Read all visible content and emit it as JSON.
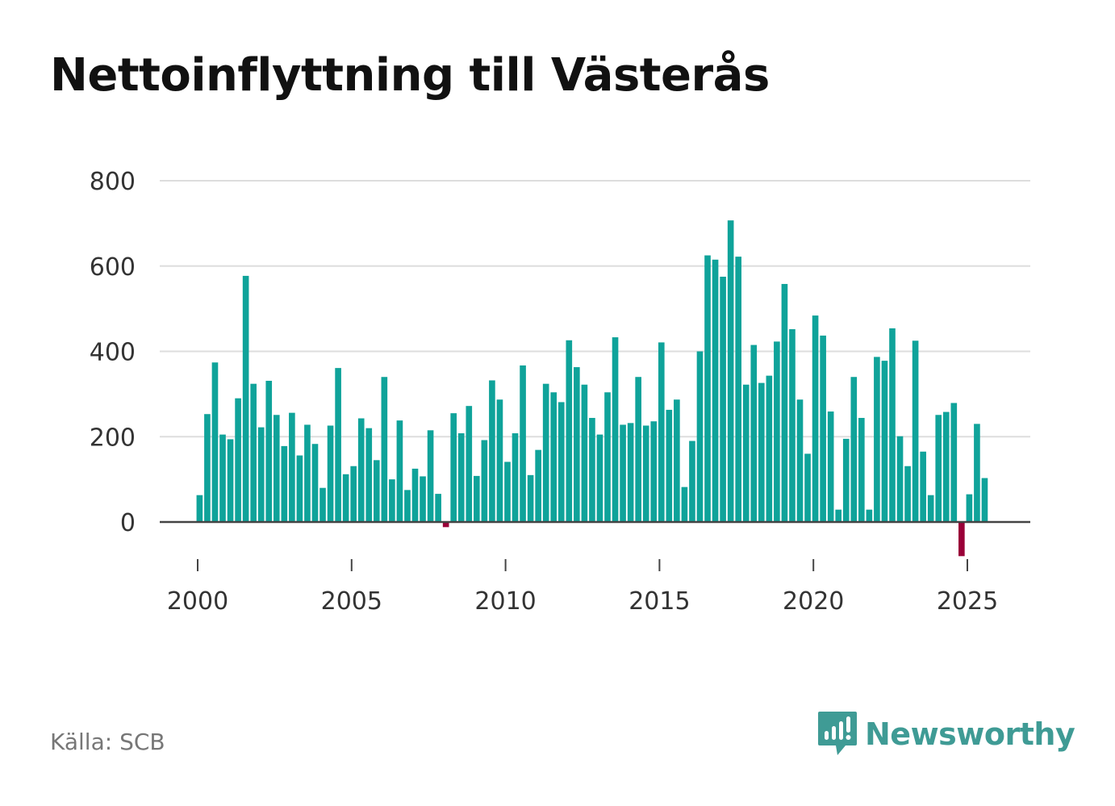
{
  "title": "Nettoinflyttning till Västerås",
  "source": "Källa: SCB",
  "brand": {
    "name": "Newsworthy",
    "color": "#3f9b95"
  },
  "colors": {
    "positive": "#0fa39a",
    "negative": "#9a0038",
    "grid": "#dddddd",
    "axis": "#444444"
  },
  "chart_data": {
    "type": "bar",
    "title": "Nettoinflyttning till Västerås",
    "xlabel": "",
    "ylabel": "",
    "ylim": [
      -80,
      800
    ],
    "yticks": [
      0,
      200,
      400,
      600,
      800
    ],
    "xticks": [
      2000,
      2005,
      2010,
      2015,
      2020,
      2025
    ],
    "xlim": [
      1998.7,
      2027.0
    ],
    "grid": true,
    "frequency": "quarterly",
    "start_year": 2000,
    "values": [
      63,
      253,
      374,
      205,
      194,
      290,
      577,
      324,
      222,
      331,
      251,
      178,
      256,
      156,
      228,
      183,
      80,
      226,
      361,
      112,
      131,
      243,
      220,
      145,
      340,
      100,
      238,
      75,
      125,
      107,
      215,
      66,
      -12,
      255,
      208,
      272,
      108,
      192,
      332,
      287,
      141,
      208,
      367,
      110,
      169,
      324,
      304,
      281,
      426,
      363,
      322,
      244,
      205,
      304,
      433,
      228,
      232,
      340,
      226,
      236,
      421,
      263,
      287,
      82,
      190,
      400,
      625,
      615,
      575,
      707,
      622,
      322,
      415,
      326,
      343,
      423,
      558,
      452,
      287,
      160,
      484,
      437,
      259,
      29,
      195,
      340,
      244,
      29,
      387,
      378,
      454,
      201,
      131,
      425,
      165,
      63,
      251,
      258,
      279,
      -80,
      65,
      230,
      103
    ]
  }
}
